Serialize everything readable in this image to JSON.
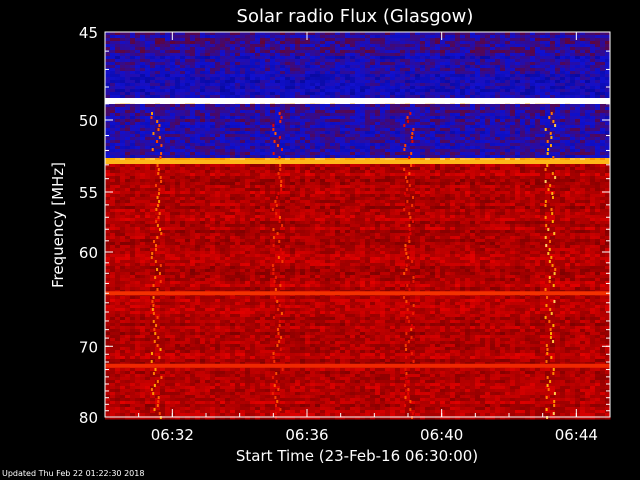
{
  "footer": {
    "updated": "Updated Thu Feb 22 01:22:30 2018"
  },
  "chart_data": {
    "type": "heatmap",
    "title": "Solar radio Flux (Glasgow)",
    "xlabel": "Start Time (23-Feb-16 06:30:00)",
    "ylabel": "Frequency [MHz]",
    "x_unit": "minutes since 06:30:00",
    "xlim": [
      0,
      15
    ],
    "ylim": [
      45,
      80
    ],
    "y_scale": "reciprocal",
    "x_ticks": [
      {
        "value": 2,
        "label": "06:32"
      },
      {
        "value": 6,
        "label": "06:36"
      },
      {
        "value": 10,
        "label": "06:40"
      },
      {
        "value": 14,
        "label": "06:44"
      }
    ],
    "y_ticks": [
      {
        "value": 45,
        "label": "45"
      },
      {
        "value": 50,
        "label": "50"
      },
      {
        "value": 55,
        "label": "55"
      },
      {
        "value": 60,
        "label": "60"
      },
      {
        "value": 70,
        "label": "70"
      },
      {
        "value": 80,
        "label": "80"
      }
    ],
    "colormap": [
      "#000060",
      "#1010d0",
      "#800000",
      "#e00000",
      "#ff5000",
      "#ffb000",
      "#ffffff"
    ],
    "background_bands": [
      {
        "from": 45,
        "to": 46.2,
        "level": 0.22
      },
      {
        "from": 46.2,
        "to": 48.6,
        "level": 0.18
      },
      {
        "from": 48.6,
        "to": 49.1,
        "level": 1.0
      },
      {
        "from": 49.1,
        "to": 52.6,
        "level": 0.2
      },
      {
        "from": 52.6,
        "to": 53.0,
        "level": 0.85
      },
      {
        "from": 53.0,
        "to": 80,
        "level": 0.42
      }
    ],
    "bright_lines": [
      {
        "freq": 48.8,
        "level": 1.0
      },
      {
        "freq": 52.8,
        "level": 0.85
      },
      {
        "freq": 64.0,
        "level": 0.6
      },
      {
        "freq": 72.5,
        "level": 0.58
      }
    ],
    "bursts": [
      {
        "time": 1.5,
        "level": 0.62
      },
      {
        "time": 5.1,
        "level": 0.5
      },
      {
        "time": 9.0,
        "level": 0.48
      },
      {
        "time": 13.2,
        "level": 0.7
      }
    ]
  }
}
